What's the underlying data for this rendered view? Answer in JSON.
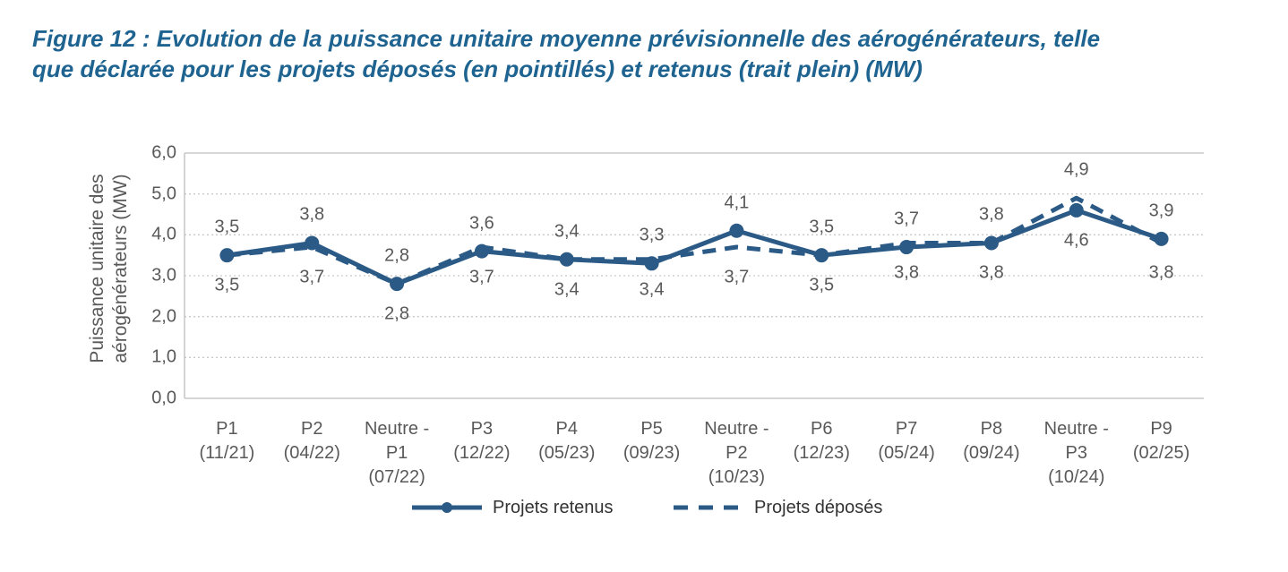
{
  "figure": {
    "title_lines": [
      "Figure 12 : Evolution de la puissance unitaire moyenne prévisionnelle des aérogénérateurs, telle",
      "que déclarée pour les projets déposés (en pointillés) et retenus (trait plein) (MW)"
    ]
  },
  "chart_data": {
    "type": "line",
    "title": "Figure 12 : Evolution de la puissance unitaire moyenne prévisionnelle des aérogénérateurs, telle que déclarée pour les projets déposés (en pointillés) et retenus (trait plein) (MW)",
    "ylabel": "Puissance unitaire des aérogénérateurs (MW)",
    "ylabel_lines": [
      "Puissance unitaire des",
      "aérogénérateurs (MW)"
    ],
    "ylim": [
      0,
      6
    ],
    "ytick_labels": [
      "0,0",
      "1,0",
      "2,0",
      "3,0",
      "4,0",
      "5,0",
      "6,0"
    ],
    "grid": true,
    "legend_position": "bottom",
    "categories": [
      [
        "P1",
        "(11/21)"
      ],
      [
        "P2",
        "(04/22)"
      ],
      [
        "Neutre -",
        "P1",
        "(07/22)"
      ],
      [
        "P3",
        "(12/22)"
      ],
      [
        "P4",
        "(05/23)"
      ],
      [
        "P5",
        "(09/23)"
      ],
      [
        "Neutre -",
        "P2",
        "(10/23)"
      ],
      [
        "P6",
        "(12/23)"
      ],
      [
        "P7",
        "(05/24)"
      ],
      [
        "P8",
        "(09/24)"
      ],
      [
        "Neutre -",
        "P3",
        "(10/24)"
      ],
      [
        "P9",
        "(02/25)"
      ]
    ],
    "series": [
      {
        "name": "Projets retenus",
        "line_style": "solid",
        "marker": "circle",
        "color": "#2a5a85",
        "values": [
          3.5,
          3.8,
          2.8,
          3.6,
          3.4,
          3.3,
          4.1,
          3.5,
          3.7,
          3.8,
          4.6,
          3.9
        ],
        "labels": [
          "3,5",
          "3,8",
          "2,8",
          "3,6",
          "3,4",
          "3,3",
          "4,1",
          "3,5",
          "3,7",
          "3,8",
          "4,6",
          "3,9"
        ],
        "label_side": [
          "above",
          "above",
          "above",
          "above",
          "above",
          "above",
          "above",
          "above",
          "above",
          "above",
          "below",
          "above"
        ]
      },
      {
        "name": "Projets déposés",
        "line_style": "dashed",
        "marker": "none",
        "color": "#2a5a85",
        "values": [
          3.5,
          3.7,
          2.8,
          3.7,
          3.4,
          3.4,
          3.7,
          3.5,
          3.8,
          3.8,
          4.9,
          3.8
        ],
        "labels": [
          "3,5",
          "3,7",
          "2,8",
          "3,7",
          "3,4",
          "3,4",
          "3,7",
          "3,5",
          "3,8",
          "3,8",
          "4,9",
          "3,8"
        ],
        "label_side": [
          "below",
          "below",
          "below",
          "below",
          "below",
          "below",
          "below",
          "below",
          "below",
          "below",
          "above",
          "below"
        ]
      }
    ]
  },
  "colors": {
    "title_text": "#1f6491",
    "series_blue": "#2a5a85",
    "axis_text": "#595959",
    "legend_text": "#333333",
    "gridline": "#c9c9c9",
    "plot_border": "#bdbdbd"
  }
}
